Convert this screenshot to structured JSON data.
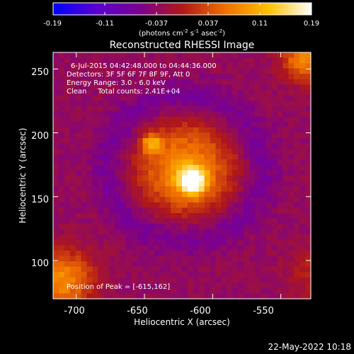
{
  "colorbar": {
    "ticks": [
      "-0.19",
      "-0.11",
      "-0.037",
      "0.037",
      "0.11",
      "0.19"
    ],
    "unit_main": "(photons cm",
    "unit_sup1": "-2",
    "unit_mid1": " s",
    "unit_sup2": "-1",
    "unit_mid2": " asec",
    "unit_sup3": "-2",
    "unit_end": ")"
  },
  "plot": {
    "title": "Reconstructed RHESSI Image",
    "info_lines": [
      "6-Jul-2015 04:42:48.000 to 04:44:36.000",
      "Detectors: 3F 5F 6F 7F 8F 9F, Att 0",
      "Energy Range: 3.0 - 6.0 keV",
      "Clean     Total counts: 2.41E+04"
    ],
    "peak_label": "Position of Peak = [-615,162]",
    "footer_date": "22-May-2022 10:18"
  },
  "chart_data": {
    "type": "heatmap",
    "title": "Reconstructed RHESSI Image",
    "xlabel": "Heliocentric X (arcsec)",
    "ylabel": "Heliocentric Y (arcsec)",
    "xlim": [
      -717,
      -528
    ],
    "ylim": [
      70,
      263
    ],
    "xticks": [
      -700,
      -650,
      -600,
      -550
    ],
    "yticks": [
      100,
      150,
      200,
      250
    ],
    "colorbar_range": [
      -0.19,
      0.19
    ],
    "colormap": [
      "#0000ff",
      "#5a00d0",
      "#7a0090",
      "#b01818",
      "#f07000",
      "#ffc000",
      "#ffffff"
    ],
    "peak": {
      "x": -615,
      "y": 162
    },
    "sources": [
      {
        "x": -615,
        "y": 162,
        "sigma": 7,
        "amp": 0.2
      },
      {
        "x": -645,
        "y": 192,
        "sigma": 5,
        "amp": 0.11
      },
      {
        "x": -620,
        "y": 172,
        "sigma": 26,
        "amp": 0.12
      }
    ],
    "background_level": -0.035
  }
}
